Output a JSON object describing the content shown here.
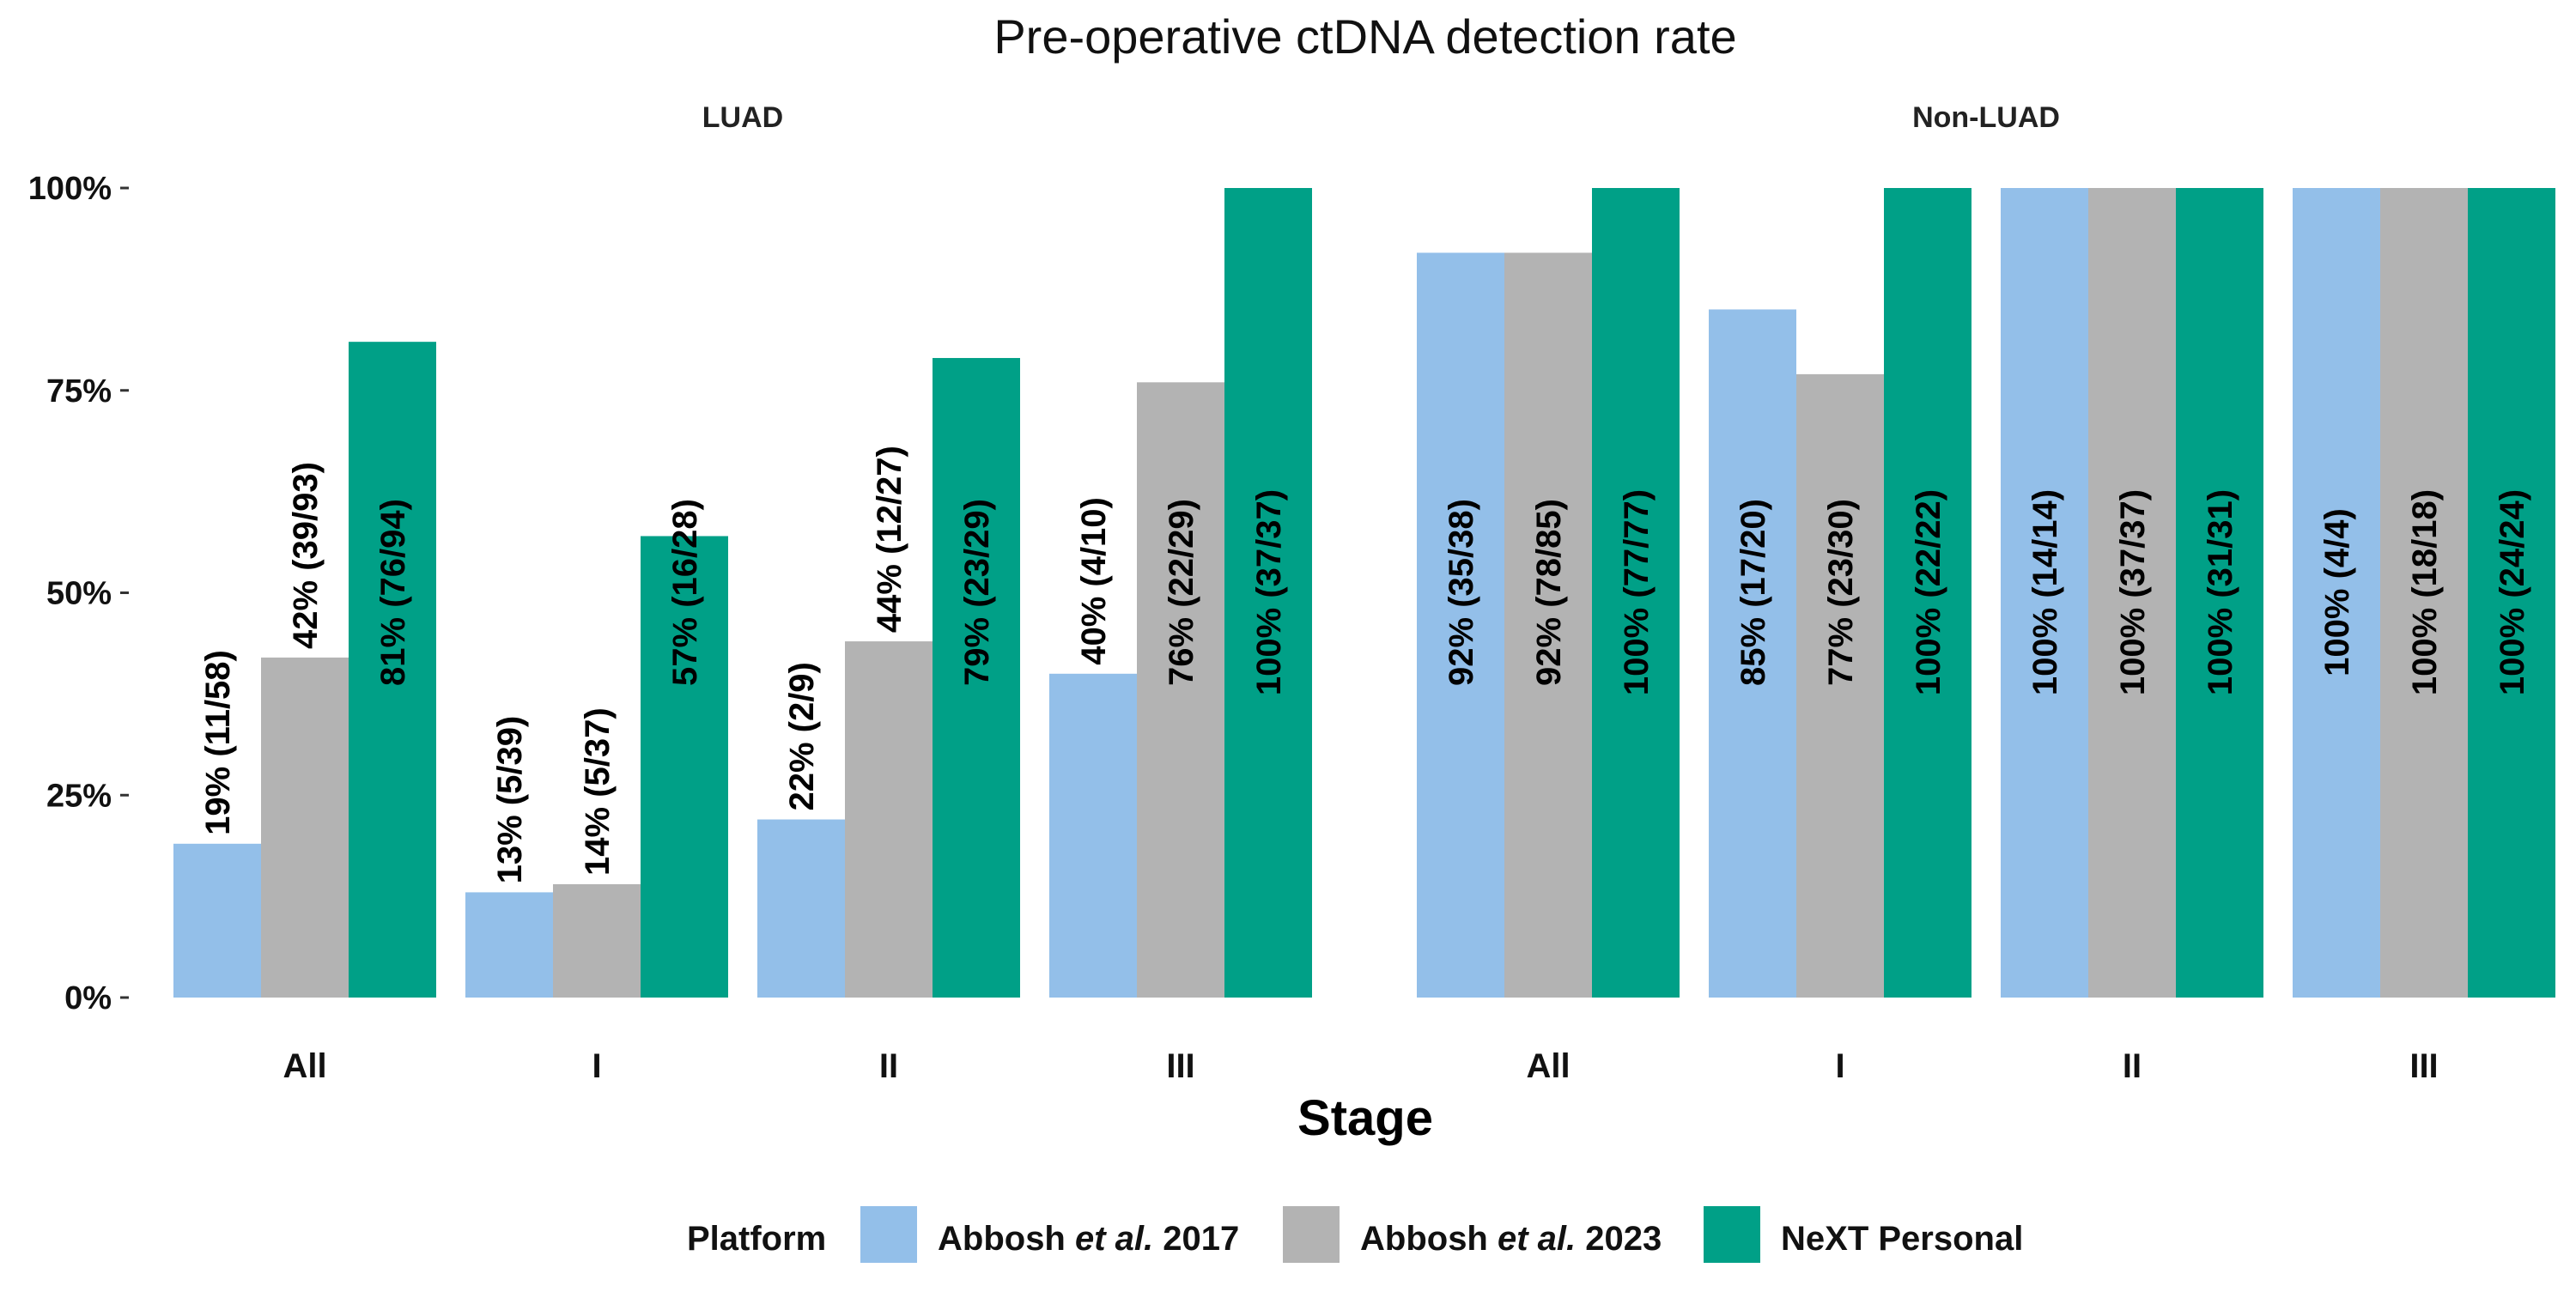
{
  "chart_data": {
    "type": "bar",
    "title": "Pre-operative ctDNA detection rate",
    "xlabel": "Stage",
    "ylabel": "",
    "ylim": [
      0,
      100
    ],
    "yticks": [
      "0%",
      "25%",
      "50%",
      "75%",
      "100%"
    ],
    "legend": {
      "title": "Platform",
      "position": "bottom",
      "entries": [
        {
          "pre": "Abbosh ",
          "em": "et al.",
          "post": " 2017"
        },
        {
          "pre": "Abbosh ",
          "em": "et al.",
          "post": " 2023"
        },
        {
          "pre": "NeXT Personal",
          "em": "",
          "post": ""
        }
      ]
    },
    "colors": [
      "#93bfe9",
      "#b3b3b3",
      "#00a087"
    ],
    "facets": [
      {
        "name": "LUAD",
        "categories": [
          "All",
          "I",
          "II",
          "III"
        ],
        "series": [
          {
            "values": [
              19,
              13,
              22,
              40
            ],
            "labels": [
              "19% (11/58)",
              "13% (5/39)",
              "22% (2/9)",
              "40% (4/10)"
            ]
          },
          {
            "values": [
              42,
              14,
              44,
              76
            ],
            "labels": [
              "42% (39/93)",
              "14% (5/37)",
              "44% (12/27)",
              "76% (22/29)"
            ]
          },
          {
            "values": [
              81,
              57,
              79,
              100
            ],
            "labels": [
              "81% (76/94)",
              "57% (16/28)",
              "79% (23/29)",
              "100% (37/37)"
            ]
          }
        ]
      },
      {
        "name": "Non-LUAD",
        "categories": [
          "All",
          "I",
          "II",
          "III"
        ],
        "series": [
          {
            "values": [
              92,
              85,
              100,
              100
            ],
            "labels": [
              "92% (35/38)",
              "85% (17/20)",
              "100% (14/14)",
              "100% (4/4)"
            ]
          },
          {
            "values": [
              92,
              77,
              100,
              100
            ],
            "labels": [
              "92% (78/85)",
              "77% (23/30)",
              "100% (37/37)",
              "100% (18/18)"
            ]
          },
          {
            "values": [
              100,
              100,
              100,
              100
            ],
            "labels": [
              "100% (77/77)",
              "100% (22/22)",
              "100% (31/31)",
              "100% (24/24)"
            ]
          }
        ]
      }
    ]
  }
}
